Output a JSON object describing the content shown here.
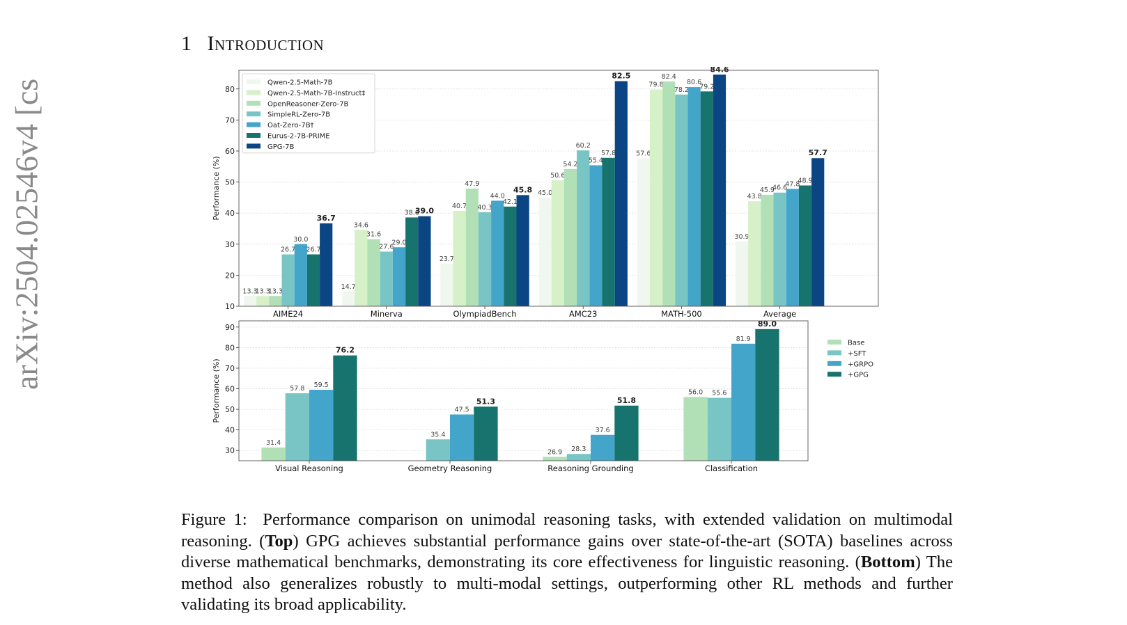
{
  "side_identifier": "arXiv:2504.02546v4  [cs",
  "section": {
    "number": "1",
    "title": "Introduction"
  },
  "chart_data": [
    {
      "type": "bar",
      "ylabel": "Performance (%)",
      "ylim": [
        10,
        86
      ],
      "yticks": [
        10,
        20,
        30,
        40,
        50,
        60,
        70,
        80
      ],
      "grid": true,
      "legend_position": "top-left",
      "categories": [
        "AIME24",
        "Minerva",
        "OlympiadBench",
        "AMC23",
        "MATH-500",
        "Average"
      ],
      "bold_series": "GPG-7B",
      "series": [
        {
          "name": "Qwen-2.5-Math-7B",
          "color": "#f0f7ee",
          "values": [
            13.3,
            14.7,
            23.7,
            45.0,
            57.6,
            30.9
          ]
        },
        {
          "name": "Qwen-2.5-Math-7B-Instruct‡",
          "color": "#d6f0c8",
          "values": [
            13.3,
            34.6,
            40.7,
            50.6,
            79.8,
            43.8
          ]
        },
        {
          "name": "OpenReasoner-Zero-7B",
          "color": "#b2e0b6",
          "values": [
            13.3,
            31.6,
            47.9,
            54.2,
            82.4,
            45.9
          ]
        },
        {
          "name": "SimpleRL-Zero-7B",
          "color": "#79c5c5",
          "values": [
            26.7,
            27.6,
            40.3,
            60.2,
            78.2,
            46.6
          ]
        },
        {
          "name": "Oat-Zero-7B†",
          "color": "#44a5cb",
          "values": [
            30.0,
            29.0,
            44.0,
            55.4,
            80.6,
            47.8
          ]
        },
        {
          "name": "Eurus-2-7B-PRIME",
          "color": "#17736e",
          "values": [
            26.7,
            38.6,
            42.1,
            57.8,
            79.2,
            48.9
          ]
        },
        {
          "name": "GPG-7B",
          "color": "#0b4583",
          "values": [
            36.7,
            39.0,
            45.8,
            82.5,
            84.6,
            57.7
          ]
        }
      ]
    },
    {
      "type": "bar",
      "ylabel": "Performance (%)",
      "ylim": [
        25,
        93
      ],
      "yticks": [
        30,
        40,
        50,
        60,
        70,
        80,
        90
      ],
      "grid": true,
      "legend_position": "outside-right",
      "categories": [
        "Visual Reasoning",
        "Geometry Reasoning",
        "Reasoning Grounding",
        "Classification"
      ],
      "bold_series": "+GPG",
      "series": [
        {
          "name": "Base",
          "color": "#b2e0b6",
          "values": [
            31.4,
            null,
            26.9,
            56.0
          ]
        },
        {
          "name": "+SFT",
          "color": "#79c5c5",
          "values": [
            57.8,
            35.4,
            28.3,
            55.6
          ]
        },
        {
          "name": "+GRPO",
          "color": "#44a5cb",
          "values": [
            59.5,
            47.5,
            37.6,
            81.9
          ]
        },
        {
          "name": "+GPG",
          "color": "#17736e",
          "values": [
            76.2,
            51.3,
            51.8,
            89.0
          ]
        }
      ]
    }
  ],
  "caption": {
    "label": "Figure 1:",
    "part1": "Performance comparison on unimodal reasoning tasks, with extended validation on multimodal reasoning. (",
    "top": "Top",
    "part2": ") GPG achieves substantial performance gains over state-of-the-art (SOTA) baselines across diverse mathematical benchmarks, demonstrating its core effectiveness for linguistic reasoning. (",
    "bottom": "Bottom",
    "part3": ") The method also generalizes robustly to multi-modal settings, outperforming other RL methods and further validating its broad applicability."
  }
}
